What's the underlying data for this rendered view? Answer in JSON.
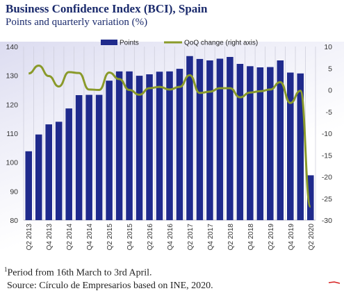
{
  "header": {
    "title": "Business Confidence Index (BCI), Spain",
    "subtitle": "Points and quarterly variation (%)"
  },
  "footer": {
    "footnote_marker": "1",
    "footnote": "Period from 16th March to 3rd April.",
    "source": "Source: Círculo de Empresarios based on INE, 2020."
  },
  "colors": {
    "bars": "#1f2a8c",
    "line": "#8a9a2a",
    "accent_red": "#d62020"
  },
  "chart_data": {
    "type": "bar",
    "categories": [
      "Q2 2013",
      "Q3 2013",
      "Q4 2013",
      "Q1 2014",
      "Q2 2014",
      "Q3 2014",
      "Q4 2014",
      "Q1 2015",
      "Q2 2015",
      "Q3 2015",
      "Q4 2015",
      "Q1 2016",
      "Q2 2016",
      "Q3 2016",
      "Q4 2016",
      "Q1 2017",
      "Q2 2017",
      "Q3 2017",
      "Q4 2017",
      "Q1 2018",
      "Q2 2018",
      "Q3 2018",
      "Q4 2018",
      "Q1 2019",
      "Q2 2019",
      "Q3 2019",
      "Q4 2019",
      "Q1 2020",
      "Q2 2020"
    ],
    "x_tick_labels": [
      "Q2 2013",
      "Q4 2013",
      "Q2 2014",
      "Q4 2014",
      "Q2 2015",
      "Q4 2015",
      "Q2 2016",
      "Q4 2016",
      "Q2 2017",
      "Q4 2017",
      "Q2 2018",
      "Q4 2018",
      "Q2 2019",
      "Q4 2019",
      "Q2 2020"
    ],
    "series": [
      {
        "name": "Points",
        "type": "bar",
        "axis": "left",
        "values": [
          103.8,
          109.6,
          113.1,
          114.0,
          118.6,
          123.2,
          123.3,
          123.3,
          128.2,
          131.4,
          131.4,
          129.9,
          130.4,
          131.3,
          131.4,
          132.3,
          136.7,
          135.7,
          135.2,
          135.8,
          136.4,
          134.0,
          133.2,
          132.8,
          132.9,
          135.2,
          131.0,
          130.7,
          95.5
        ]
      },
      {
        "name": "QoQ change (right axis)",
        "type": "line",
        "axis": "right",
        "values": [
          3.8,
          5.6,
          3.2,
          0.8,
          4.1,
          3.9,
          0.1,
          0.0,
          4.0,
          2.5,
          0.0,
          -1.1,
          0.4,
          0.7,
          0.1,
          0.7,
          3.4,
          -0.7,
          -0.4,
          0.4,
          0.4,
          -1.7,
          -0.6,
          -0.3,
          0.1,
          1.8,
          -3.0,
          -0.2,
          -26.9
        ]
      }
    ],
    "y_left": {
      "ylim": [
        80,
        140
      ],
      "ticks": [
        80,
        90,
        100,
        110,
        120,
        130,
        140
      ]
    },
    "y_right": {
      "ylim": [
        -30,
        10
      ],
      "ticks": [
        -30,
        -25,
        -20,
        -15,
        -10,
        -5,
        0,
        5,
        10
      ]
    },
    "legend": {
      "position": "top",
      "items": [
        "Points",
        "QoQ change (right axis)"
      ]
    },
    "grid": "vertical"
  }
}
